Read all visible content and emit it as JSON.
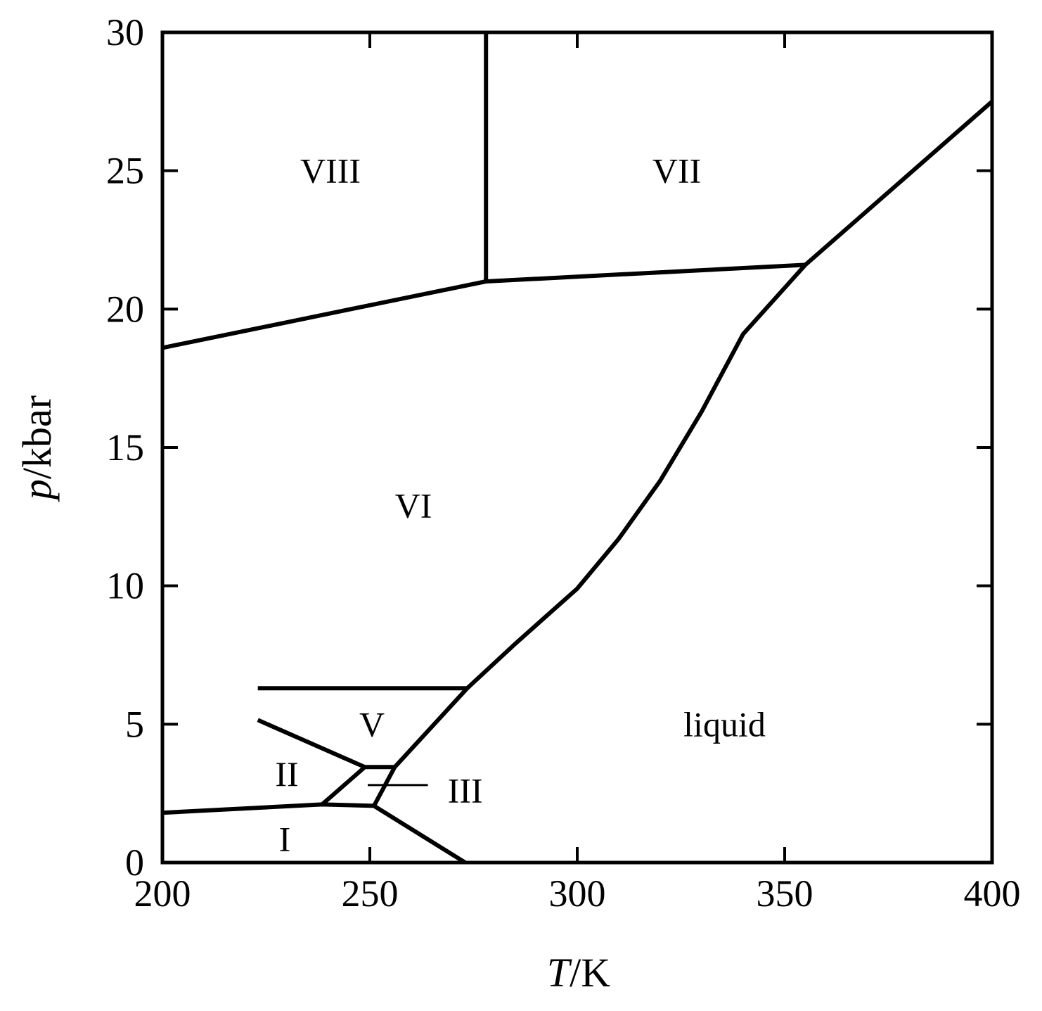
{
  "chart_data": {
    "type": "line",
    "title": "",
    "xlabel": {
      "symbol": "T",
      "unit": "/K"
    },
    "ylabel": {
      "symbol": "p",
      "unit": "/kbar"
    },
    "xlim": [
      200,
      400
    ],
    "ylim": [
      0,
      30
    ],
    "xticks": [
      200,
      250,
      300,
      350,
      400
    ],
    "yticks": [
      0,
      5,
      10,
      15,
      20,
      25,
      30
    ],
    "grid": false,
    "legend": "none",
    "line_color": "#000000",
    "series": [
      {
        "points": [
          [
            200,
            1.8
          ],
          [
            238.5,
            2.1
          ],
          [
            251,
            2.05
          ]
        ]
      },
      {
        "points": [
          [
            251,
            2.05
          ],
          [
            273,
            0
          ]
        ]
      },
      {
        "points": [
          [
            238.5,
            2.1
          ],
          [
            248.8,
            3.45
          ],
          [
            256,
            3.45
          ],
          [
            251,
            2.05
          ]
        ]
      },
      {
        "points": [
          [
            223,
            5.15
          ],
          [
            248.8,
            3.45
          ]
        ]
      },
      {
        "points": [
          [
            256,
            3.45
          ],
          [
            273.5,
            6.3
          ]
        ]
      },
      {
        "points": [
          [
            223,
            6.3
          ],
          [
            273.5,
            6.3
          ]
        ]
      },
      {
        "points": [
          [
            273.5,
            6.3
          ],
          [
            285,
            7.9
          ],
          [
            300,
            9.9
          ],
          [
            310,
            11.7
          ],
          [
            320,
            13.8
          ],
          [
            330,
            16.3
          ],
          [
            340,
            19.1
          ],
          [
            355,
            21.6
          ]
        ]
      },
      {
        "points": [
          [
            355,
            21.6
          ],
          [
            400,
            27.5
          ]
        ]
      },
      {
        "points": [
          [
            200,
            18.6
          ],
          [
            278,
            21.0
          ],
          [
            355,
            21.6
          ]
        ]
      },
      {
        "points": [
          [
            278,
            21.0
          ],
          [
            278,
            30
          ]
        ]
      },
      {
        "points": [
          [
            249.5,
            2.8
          ],
          [
            264,
            2.8
          ]
        ]
      }
    ],
    "annotations": [
      {
        "text": "VIII",
        "x": 240.5,
        "y": 25
      },
      {
        "text": "VII",
        "x": 324,
        "y": 25
      },
      {
        "text": "VI",
        "x": 260.5,
        "y": 12.9
      },
      {
        "text": "V",
        "x": 250.5,
        "y": 5
      },
      {
        "text": "II",
        "x": 230,
        "y": 3.2
      },
      {
        "text": "III",
        "x": 273,
        "y": 2.6
      },
      {
        "text": "I",
        "x": 229.5,
        "y": 0.85
      },
      {
        "text": "liquid",
        "x": 335.5,
        "y": 5
      }
    ]
  }
}
